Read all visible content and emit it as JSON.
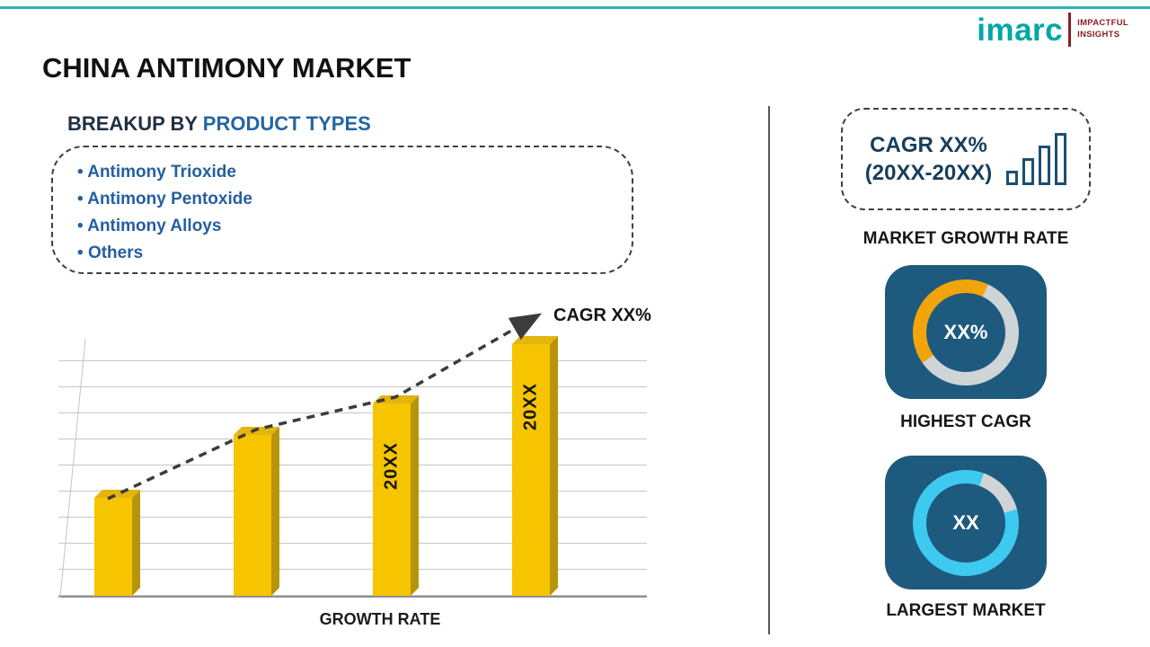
{
  "title": "CHINA ANTIMONY MARKET",
  "logo": {
    "brand": "imarc",
    "tagline_line1": "IMPACTFUL",
    "tagline_line2": "INSIGHTS"
  },
  "breakup": {
    "heading_prefix": "BREAKUP BY ",
    "heading_highlight": "PRODUCT TYPES",
    "items": [
      "Antimony Trioxide",
      "Antimony Pentoxide",
      "Antimony Alloys",
      "Others"
    ]
  },
  "chart_data": {
    "type": "bar",
    "title": "",
    "xlabel": "GROWTH RATE",
    "ylabel": "",
    "values": [
      28,
      46,
      55,
      72
    ],
    "bar_labels": [
      "",
      "",
      "20XX",
      "20XX"
    ],
    "trend_label": "CAGR XX%",
    "trend_style": "dashed-arrow-up",
    "grid": true,
    "legend": false,
    "bar_color": "#f6c500"
  },
  "sidebar": {
    "growth_card": {
      "line1": "CAGR XX%",
      "line2": "(20XX-20XX)"
    },
    "market_growth_label": "MARKET GROWTH RATE",
    "highest_cagr": {
      "value": "XX%",
      "label": "HIGHEST CAGR"
    },
    "largest_market": {
      "value": "XX",
      "label": "LARGEST MARKET"
    }
  },
  "colors": {
    "top_line_teal": "#2bb6b8",
    "accent_blue_text": "#2465a4",
    "bar_yellow": "#f6c500",
    "donut_yellow": "#f2a50a",
    "donut_cyan": "#3ec9f0",
    "donut_track_gray": "#cfd4d6",
    "stat_card_blue": "#1e5a7e",
    "logo_teal": "#00a7a7",
    "logo_maroon": "#8b1f24"
  }
}
